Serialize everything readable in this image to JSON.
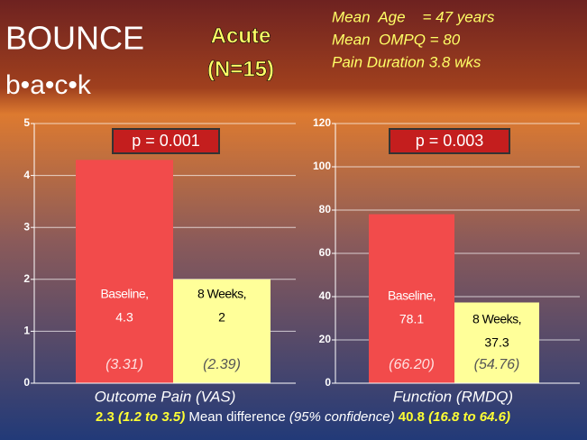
{
  "header": {
    "logo": [
      "BOUNCE",
      "b•a•c•k"
    ],
    "title": "Acute",
    "subtitle": "(N=15)",
    "stats": [
      "Mean  Age    = 47 years",
      "Mean  OMPQ = 80",
      "Pain Duration 3.8 wks"
    ]
  },
  "chart_data": [
    {
      "type": "bar",
      "annotation": "p = 0.001",
      "x_label": "Outcome Pain (VAS)",
      "categories": [
        "Baseline,",
        "8 Weeks,"
      ],
      "values": [
        4.3,
        2
      ],
      "sd_labels": [
        "(3.31)",
        "(2.39)"
      ],
      "colors": [
        "#f24b4b",
        "#ffff99"
      ],
      "ylim": [
        0,
        5
      ],
      "yticks": [
        0,
        1,
        2,
        3,
        4,
        5
      ],
      "grid": true
    },
    {
      "type": "bar",
      "annotation": "p = 0.003",
      "x_label": "Function (RMDQ)",
      "categories": [
        "Baseline,",
        "8 Weeks,"
      ],
      "values": [
        78.1,
        37.3
      ],
      "sd_labels": [
        "(66.20)",
        "(54.76)"
      ],
      "colors": [
        "#f24b4b",
        "#ffff99"
      ],
      "ylim": [
        0,
        120
      ],
      "yticks": [
        0,
        20,
        40,
        60,
        80,
        100,
        120
      ],
      "grid": true
    }
  ],
  "footer": {
    "diff_1": "2.3",
    "ci_1": "(1.2 to 3.5)",
    "label": "Mean difference",
    "ci_label": "(95% confidence)",
    "diff_2": "40.8",
    "ci_2": "(16.8 to 64.6)"
  }
}
